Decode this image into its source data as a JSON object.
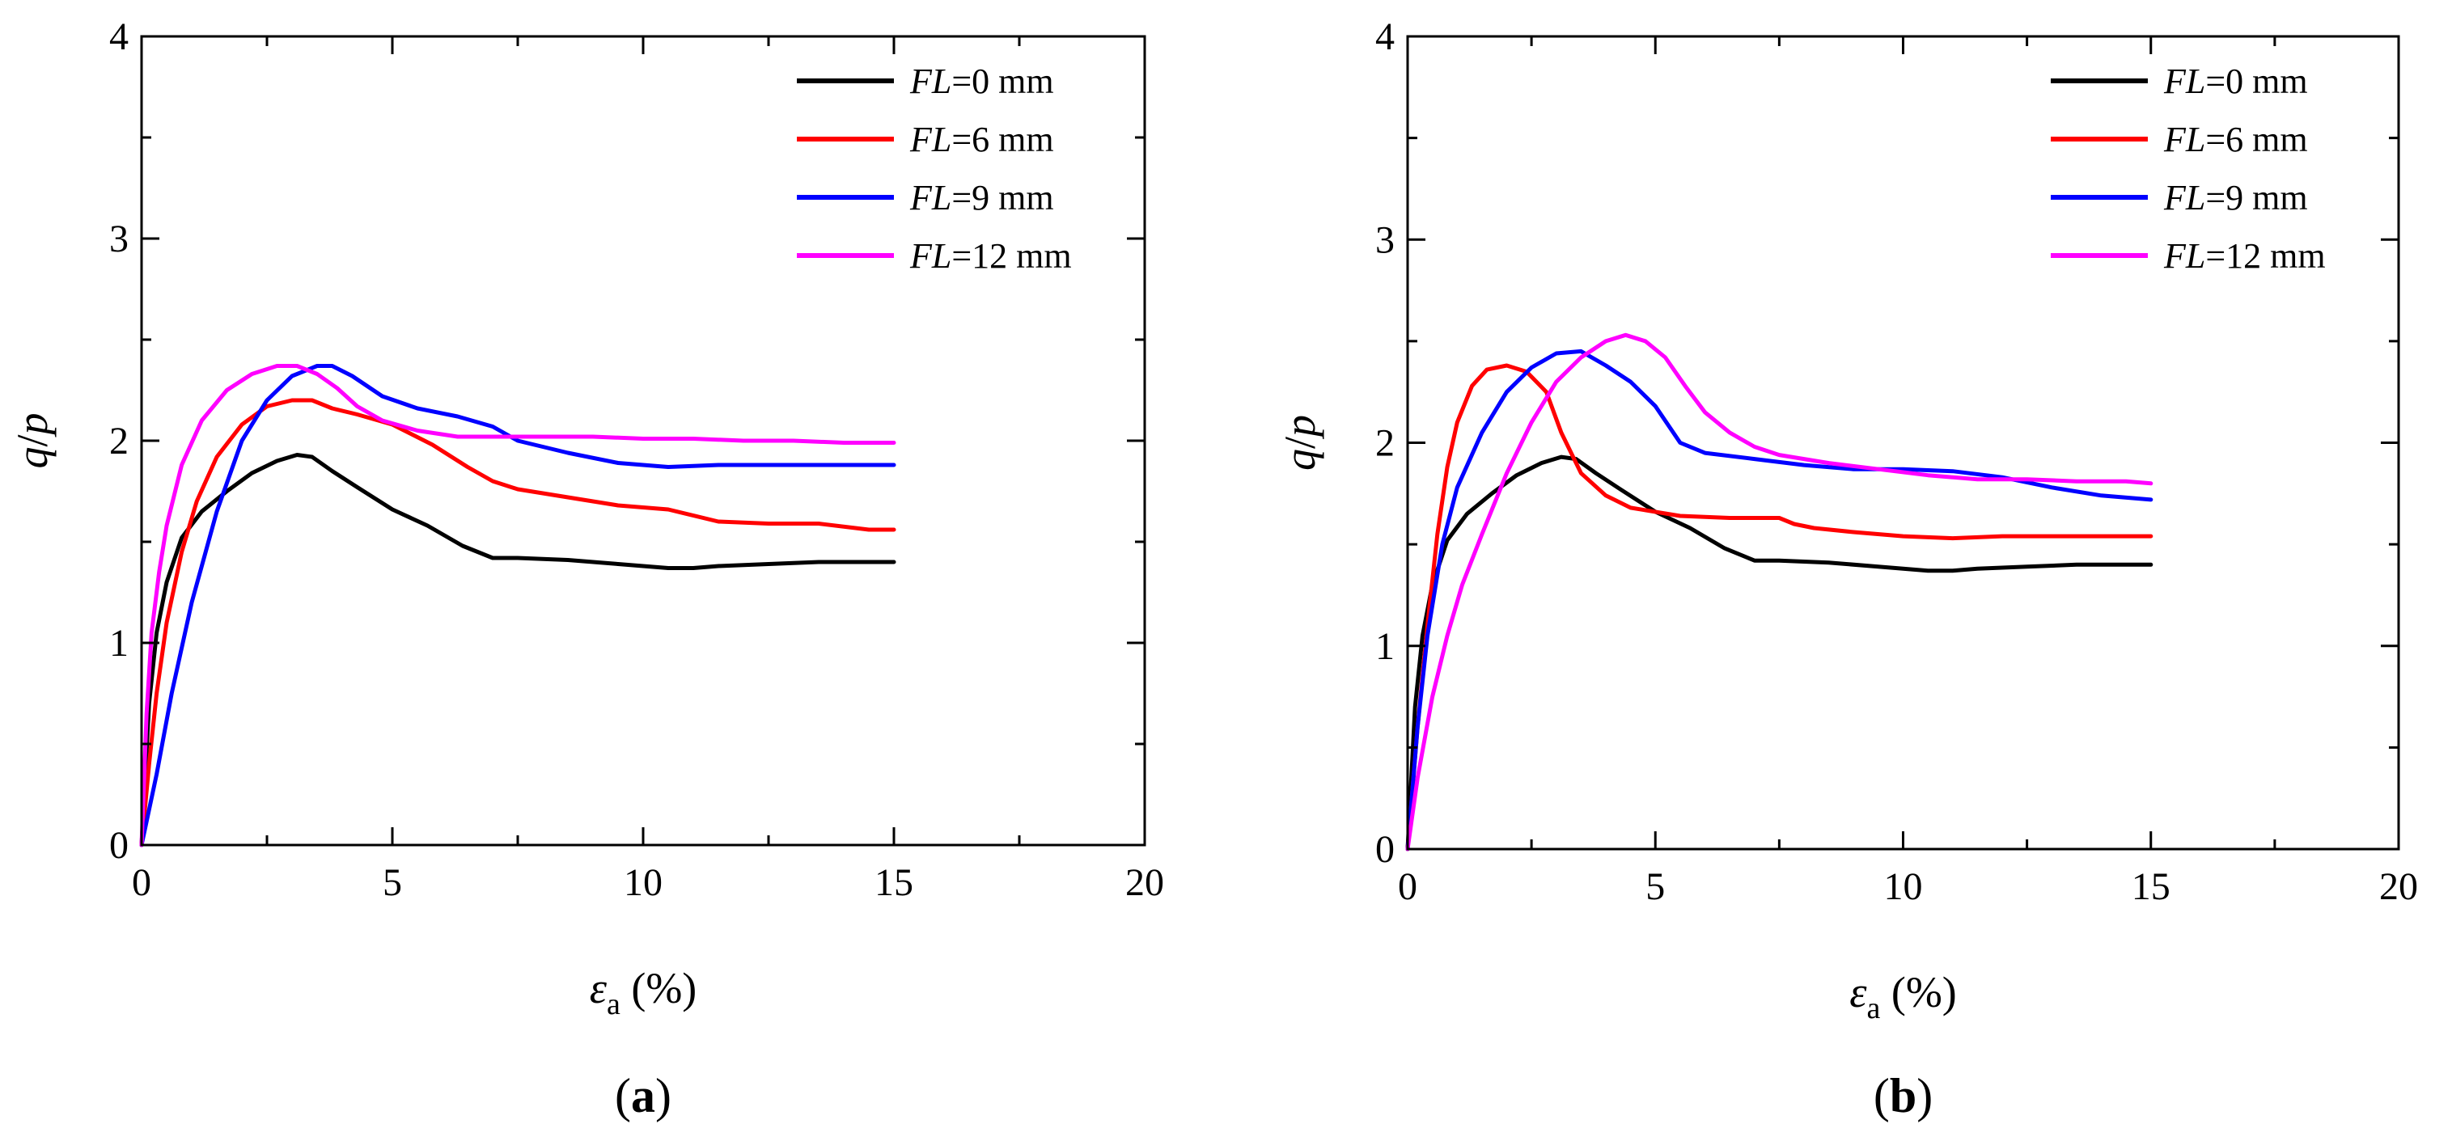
{
  "chart_data": [
    {
      "panel": "a",
      "type": "line",
      "xlabel_sym": "ε",
      "xlabel_sub": "a",
      "xlabel_unit": " (%)",
      "ylabel_sym1": "q",
      "ylabel_sep": "/",
      "ylabel_sym2": "p",
      "xlim": [
        0,
        20
      ],
      "ylim": [
        0,
        4
      ],
      "xticks": [
        "0",
        "5",
        "10",
        "15",
        "20"
      ],
      "yticks": [
        "0",
        "1",
        "2",
        "3",
        "4"
      ],
      "legend_position": "top-right",
      "panel_label": {
        "open": "(",
        "letter": "a",
        "close": ")"
      },
      "series": [
        {
          "name": "FL=0 mm",
          "name_var": "FL",
          "name_value": "=0 mm",
          "color": "#000000",
          "x": [
            0,
            0.15,
            0.3,
            0.5,
            0.8,
            1.2,
            1.7,
            2.2,
            2.7,
            3.1,
            3.4,
            3.8,
            4.3,
            5,
            5.7,
            6.4,
            7,
            7.5,
            8.5,
            9.5,
            10.5,
            11,
            11.5,
            12.5,
            13.5,
            14.5,
            15
          ],
          "y": [
            0,
            0.7,
            1.05,
            1.3,
            1.52,
            1.65,
            1.75,
            1.84,
            1.9,
            1.93,
            1.92,
            1.85,
            1.77,
            1.66,
            1.58,
            1.48,
            1.42,
            1.42,
            1.41,
            1.39,
            1.37,
            1.37,
            1.38,
            1.39,
            1.4,
            1.4,
            1.4
          ]
        },
        {
          "name": "FL=6 mm",
          "name_var": "FL",
          "name_value": "=6 mm",
          "color": "#ff0000",
          "x": [
            0,
            0.15,
            0.3,
            0.5,
            0.8,
            1.1,
            1.5,
            2,
            2.5,
            3,
            3.4,
            3.8,
            4.3,
            5,
            5.8,
            6.5,
            7,
            7.5,
            8.5,
            9.5,
            10.5,
            11.5,
            12.5,
            13.5,
            14.5,
            15
          ],
          "y": [
            0,
            0.4,
            0.75,
            1.1,
            1.45,
            1.7,
            1.92,
            2.08,
            2.17,
            2.2,
            2.2,
            2.16,
            2.13,
            2.08,
            1.98,
            1.87,
            1.8,
            1.76,
            1.72,
            1.68,
            1.66,
            1.6,
            1.59,
            1.59,
            1.56,
            1.56
          ]
        },
        {
          "name": "FL=9 mm",
          "name_var": "FL",
          "name_value": "=9 mm",
          "color": "#0000ff",
          "x": [
            0,
            0.3,
            0.6,
            1,
            1.5,
            2,
            2.5,
            3,
            3.5,
            3.8,
            4.2,
            4.8,
            5.5,
            6.3,
            7,
            7.5,
            8.5,
            9.5,
            10.5,
            11.5,
            12.5,
            13.5,
            14.5,
            15
          ],
          "y": [
            0,
            0.35,
            0.75,
            1.2,
            1.65,
            2.0,
            2.2,
            2.32,
            2.37,
            2.37,
            2.32,
            2.22,
            2.16,
            2.12,
            2.07,
            2.0,
            1.94,
            1.89,
            1.87,
            1.88,
            1.88,
            1.88,
            1.88,
            1.88
          ]
        },
        {
          "name": "FL=12 mm",
          "name_var": "FL",
          "name_value": "=12 mm",
          "color": "#ff00ff",
          "x": [
            0,
            0.1,
            0.2,
            0.35,
            0.5,
            0.8,
            1.2,
            1.7,
            2.2,
            2.7,
            3.1,
            3.5,
            3.9,
            4.3,
            4.8,
            5.5,
            6.3,
            7,
            8,
            9,
            10,
            11,
            12,
            13,
            14,
            15
          ],
          "y": [
            0,
            0.65,
            1.05,
            1.35,
            1.58,
            1.88,
            2.1,
            2.25,
            2.33,
            2.37,
            2.37,
            2.33,
            2.26,
            2.17,
            2.1,
            2.05,
            2.02,
            2.02,
            2.02,
            2.02,
            2.01,
            2.01,
            2.0,
            2.0,
            1.99,
            1.99
          ]
        }
      ]
    },
    {
      "panel": "b",
      "type": "line",
      "xlabel_sym": "ε",
      "xlabel_sub": "a",
      "xlabel_unit": " (%)",
      "ylabel_sym1": "q",
      "ylabel_sep": "/",
      "ylabel_sym2": "p",
      "xlim": [
        0,
        20
      ],
      "ylim": [
        0,
        4
      ],
      "xticks": [
        "0",
        "5",
        "10",
        "15",
        "20"
      ],
      "yticks": [
        "0",
        "1",
        "2",
        "3",
        "4"
      ],
      "legend_position": "top-right",
      "panel_label": {
        "open": "(",
        "letter": "b",
        "close": ")"
      },
      "series": [
        {
          "name": "FL=0 mm",
          "name_var": "FL",
          "name_value": "=0 mm",
          "color": "#000000",
          "x": [
            0,
            0.15,
            0.3,
            0.5,
            0.8,
            1.2,
            1.7,
            2.2,
            2.7,
            3.1,
            3.4,
            3.8,
            4.3,
            5,
            5.7,
            6.4,
            7,
            7.5,
            8.5,
            9.5,
            10.5,
            11,
            11.5,
            12.5,
            13.5,
            14.5,
            15
          ],
          "y": [
            0,
            0.7,
            1.05,
            1.3,
            1.52,
            1.65,
            1.75,
            1.84,
            1.9,
            1.93,
            1.92,
            1.85,
            1.77,
            1.66,
            1.58,
            1.48,
            1.42,
            1.42,
            1.41,
            1.39,
            1.37,
            1.37,
            1.38,
            1.39,
            1.4,
            1.4,
            1.4
          ]
        },
        {
          "name": "FL=6 mm",
          "name_var": "FL",
          "name_value": "=6 mm",
          "color": "#ff0000",
          "x": [
            0,
            0.2,
            0.4,
            0.6,
            0.8,
            1.0,
            1.3,
            1.6,
            2.0,
            2.4,
            2.8,
            3.1,
            3.5,
            4.0,
            4.5,
            5.5,
            6.5,
            7.5,
            7.8,
            8.2,
            9,
            10,
            11,
            12,
            13,
            14,
            15
          ],
          "y": [
            0,
            0.6,
            1.1,
            1.55,
            1.88,
            2.1,
            2.28,
            2.36,
            2.38,
            2.35,
            2.25,
            2.05,
            1.85,
            1.74,
            1.68,
            1.64,
            1.63,
            1.63,
            1.6,
            1.58,
            1.56,
            1.54,
            1.53,
            1.54,
            1.54,
            1.54,
            1.54
          ]
        },
        {
          "name": "FL=9 mm",
          "name_var": "FL",
          "name_value": "=9 mm",
          "color": "#0000ff",
          "x": [
            0,
            0.2,
            0.4,
            0.7,
            1.0,
            1.5,
            2,
            2.5,
            3,
            3.5,
            4,
            4.5,
            5,
            5.5,
            6,
            7,
            8,
            9,
            10,
            11,
            12,
            13,
            14,
            15
          ],
          "y": [
            0,
            0.6,
            1.05,
            1.5,
            1.78,
            2.05,
            2.25,
            2.37,
            2.44,
            2.45,
            2.38,
            2.3,
            2.18,
            2.0,
            1.95,
            1.92,
            1.89,
            1.87,
            1.87,
            1.86,
            1.83,
            1.78,
            1.74,
            1.72
          ]
        },
        {
          "name": "FL=12 mm",
          "name_var": "FL",
          "name_value": "=12 mm",
          "color": "#ff00ff",
          "x": [
            0,
            0.2,
            0.5,
            0.8,
            1.1,
            1.5,
            2,
            2.5,
            3,
            3.5,
            4,
            4.4,
            4.8,
            5.2,
            5.6,
            6,
            6.5,
            7,
            7.5,
            8.5,
            9.5,
            10.5,
            11.5,
            12.5,
            13.5,
            14.5,
            15
          ],
          "y": [
            0,
            0.35,
            0.75,
            1.05,
            1.3,
            1.55,
            1.85,
            2.1,
            2.3,
            2.42,
            2.5,
            2.53,
            2.5,
            2.42,
            2.28,
            2.15,
            2.05,
            1.98,
            1.94,
            1.9,
            1.87,
            1.84,
            1.82,
            1.82,
            1.81,
            1.81,
            1.8
          ]
        }
      ]
    }
  ]
}
